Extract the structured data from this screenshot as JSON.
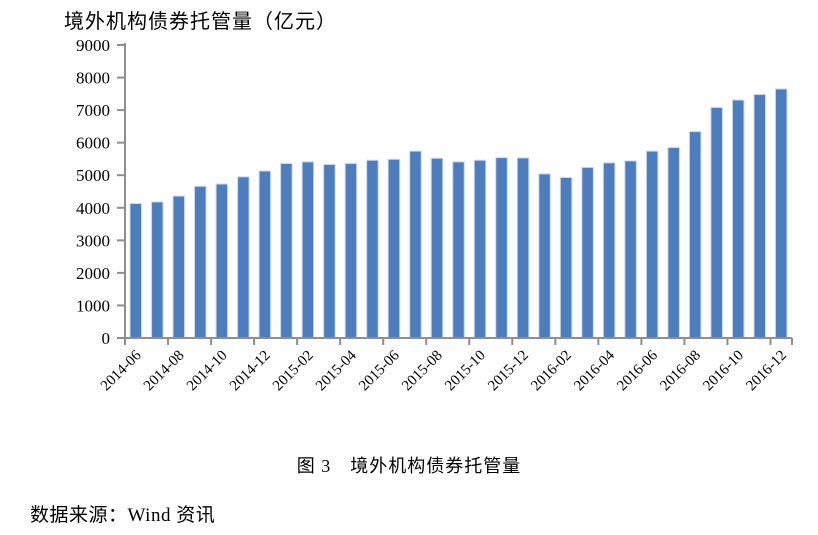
{
  "page": {
    "title": "境外机构债券托管量（亿元）",
    "caption": "图 3　境外机构债券托管量",
    "source": "数据来源：Wind 资讯"
  },
  "colors": {
    "bar": "#4E7DBE",
    "bar_edge": "#C9D7EC",
    "axis": "#8E8E8E",
    "text": "#000000"
  },
  "chart_data": {
    "type": "bar",
    "title": "境外机构债券托管量（亿元）",
    "x": [
      "2014-06",
      "2014-07",
      "2014-08",
      "2014-09",
      "2014-10",
      "2014-11",
      "2014-12",
      "2015-01",
      "2015-02",
      "2015-03",
      "2015-04",
      "2015-05",
      "2015-06",
      "2015-07",
      "2015-08",
      "2015-09",
      "2015-10",
      "2015-11",
      "2015-12",
      "2016-01",
      "2016-02",
      "2016-03",
      "2016-04",
      "2016-05",
      "2016-06",
      "2016-07",
      "2016-08",
      "2016-09",
      "2016-10",
      "2016-11",
      "2016-12"
    ],
    "values": [
      4130,
      4180,
      4360,
      4660,
      4730,
      4950,
      5130,
      5360,
      5410,
      5330,
      5360,
      5460,
      5490,
      5740,
      5520,
      5410,
      5460,
      5540,
      5530,
      5040,
      4930,
      5240,
      5380,
      5440,
      5740,
      5850,
      6340,
      7080,
      7310,
      7480,
      7650
    ],
    "xlabel": "",
    "ylabel": "",
    "ylim": [
      0,
      9000
    ],
    "ytick_step": 1000,
    "xtick_label_every": 2,
    "grid": false,
    "legend": null,
    "bar_color": "#4E7DBE"
  }
}
